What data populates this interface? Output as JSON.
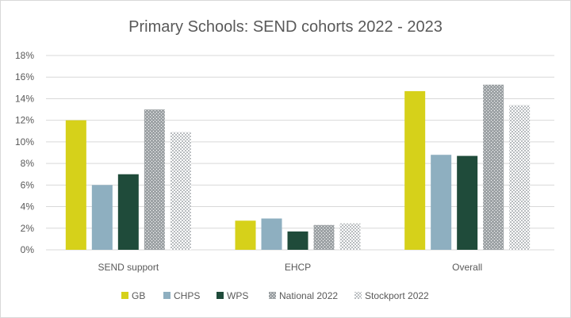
{
  "chart_data": {
    "type": "bar",
    "title": "Primary Schools: SEND cohorts 2022 - 2023",
    "categories": [
      "SEND support",
      "EHCP",
      "Overall"
    ],
    "series": [
      {
        "name": "GB",
        "values": [
          12.0,
          2.7,
          14.7
        ],
        "color": "#d6d11a",
        "pattern": "solid"
      },
      {
        "name": "CHPS",
        "values": [
          6.0,
          2.9,
          8.8
        ],
        "color": "#8eafc0",
        "pattern": "solid"
      },
      {
        "name": "WPS",
        "values": [
          7.0,
          1.7,
          8.7
        ],
        "color": "#1f4b3a",
        "pattern": "solid"
      },
      {
        "name": "National 2022",
        "values": [
          13.0,
          2.3,
          15.3
        ],
        "color": "#9ea3a6",
        "pattern": "dense-dots"
      },
      {
        "name": "Stockport 2022",
        "values": [
          10.9,
          2.45,
          13.4
        ],
        "color": "#b8bcbf",
        "pattern": "light-dots"
      }
    ],
    "ylim": [
      0,
      18
    ],
    "yticks": [
      "0%",
      "2%",
      "4%",
      "6%",
      "8%",
      "10%",
      "12%",
      "14%",
      "16%",
      "18%"
    ],
    "grid": true,
    "legend": "bottom"
  }
}
